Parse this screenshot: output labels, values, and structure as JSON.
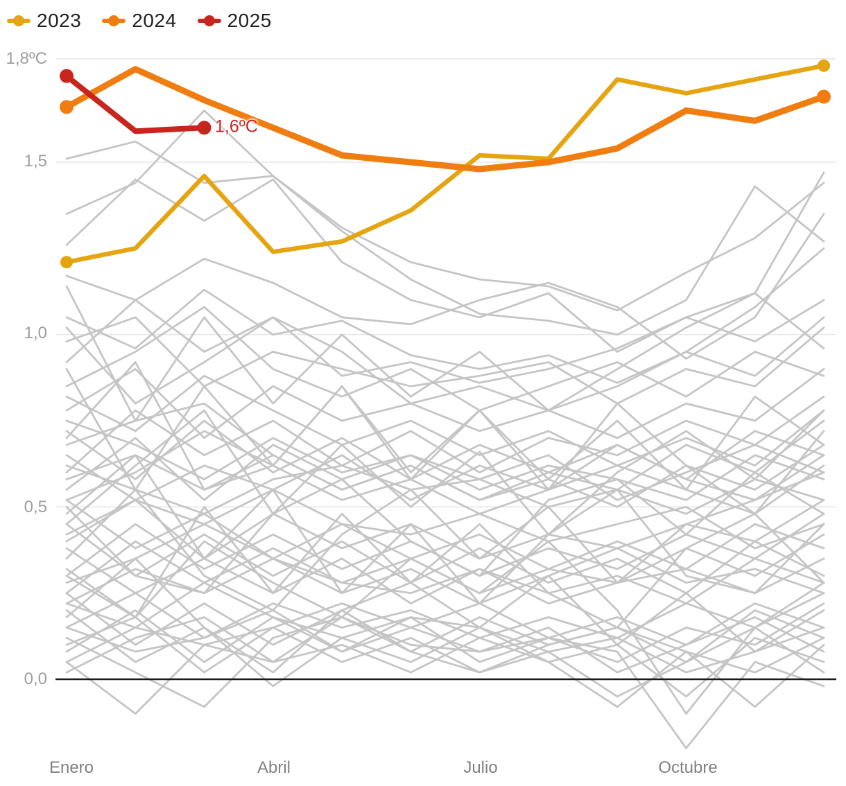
{
  "legend": {
    "items": [
      {
        "label": "2023",
        "color": "#E5A512"
      },
      {
        "label": "2024",
        "color": "#EF7D10"
      },
      {
        "label": "2025",
        "color": "#C8251E"
      }
    ]
  },
  "colors": {
    "grid": "#E7E7E7",
    "zero_line": "#1A1A1A",
    "background_lines": "#C5C5C5",
    "y_axis_text": "#9E9E9E",
    "x_axis_text": "#818181",
    "legend_text": "#212121"
  },
  "chart_data": {
    "type": "line",
    "unit": "°C",
    "n_months": 12,
    "ylim": [
      -0.3,
      1.85
    ],
    "grid": true,
    "legend_position": "top-left",
    "yticks": [
      {
        "value": 1.8,
        "label": "1,8ºC"
      },
      {
        "value": 1.5,
        "label": "1,5"
      },
      {
        "value": 1.0,
        "label": "1,0"
      },
      {
        "value": 0.5,
        "label": "0,5"
      },
      {
        "value": 0.0,
        "label": "0,0"
      }
    ],
    "x_ticks": [
      {
        "month_index": 0,
        "label": "Enero"
      },
      {
        "month_index": 3,
        "label": "Abril"
      },
      {
        "month_index": 6,
        "label": "Julio"
      },
      {
        "month_index": 9,
        "label": "Octubre"
      }
    ],
    "series": [
      {
        "name": "2023",
        "color": "#E5A512",
        "width": 6.5,
        "dot_radius": 9,
        "values": [
          1.21,
          1.25,
          1.46,
          1.24,
          1.27,
          1.36,
          1.52,
          1.51,
          1.74,
          1.7,
          1.74,
          1.78
        ]
      },
      {
        "name": "2024",
        "color": "#EF7D10",
        "width": 9,
        "dot_radius": 10,
        "values": [
          1.66,
          1.77,
          1.68,
          1.6,
          1.52,
          1.5,
          1.48,
          1.5,
          1.54,
          1.65,
          1.62,
          1.69
        ]
      },
      {
        "name": "2025",
        "color": "#C8251E",
        "width": 8,
        "dot_radius": 10,
        "values": [
          1.75,
          1.59,
          1.6
        ]
      }
    ],
    "annotation": {
      "text": "1,6ºC",
      "series": "2025",
      "month_index": 2,
      "value": 1.6,
      "color": "#C8251E"
    },
    "background_series": [
      [
        1.51,
        1.56,
        1.44,
        1.46,
        1.31,
        1.21,
        1.16,
        1.14,
        1.07,
        1.18,
        1.28,
        1.44
      ],
      [
        1.35,
        1.44,
        1.65,
        1.46,
        1.3,
        1.16,
        1.06,
        1.04,
        1.0,
        1.1,
        1.43,
        1.27
      ],
      [
        1.26,
        1.45,
        1.33,
        1.45,
        1.21,
        1.1,
        1.05,
        1.12,
        0.95,
        1.05,
        1.12,
        1.47
      ],
      [
        1.17,
        1.1,
        1.22,
        1.15,
        1.05,
        1.03,
        1.1,
        1.15,
        1.08,
        0.93,
        1.05,
        1.35
      ],
      [
        1.05,
        0.96,
        1.13,
        1.0,
        1.04,
        0.94,
        0.9,
        0.94,
        0.86,
        0.95,
        1.08,
        1.25
      ],
      [
        0.92,
        1.1,
        0.95,
        1.05,
        0.88,
        0.92,
        0.86,
        0.9,
        0.96,
        1.05,
        0.98,
        1.1
      ],
      [
        1.14,
        0.75,
        1.05,
        0.8,
        1.0,
        0.82,
        0.95,
        0.78,
        0.9,
        1.02,
        1.12,
        0.96
      ],
      [
        0.98,
        1.05,
        0.85,
        0.95,
        0.9,
        0.85,
        0.88,
        0.92,
        0.8,
        0.9,
        0.85,
        1.02
      ],
      [
        0.85,
        0.95,
        1.08,
        0.9,
        0.82,
        0.9,
        0.78,
        0.85,
        0.92,
        0.82,
        0.95,
        0.88
      ],
      [
        1.02,
        0.8,
        0.92,
        1.05,
        0.95,
        0.8,
        0.85,
        0.78,
        0.85,
        0.95,
        0.88,
        1.05
      ],
      [
        0.78,
        0.9,
        0.7,
        0.85,
        0.75,
        0.8,
        0.72,
        0.78,
        0.7,
        0.8,
        0.75,
        0.9
      ],
      [
        0.9,
        0.55,
        0.85,
        0.62,
        0.85,
        0.6,
        0.78,
        0.58,
        0.75,
        0.55,
        0.82,
        0.68
      ],
      [
        0.6,
        0.78,
        0.65,
        0.75,
        0.62,
        0.72,
        0.6,
        0.7,
        0.65,
        0.75,
        0.68,
        0.82
      ],
      [
        0.72,
        0.58,
        0.75,
        0.6,
        0.7,
        0.58,
        0.68,
        0.6,
        0.55,
        0.68,
        0.6,
        0.75
      ],
      [
        0.55,
        0.7,
        0.52,
        0.68,
        0.58,
        0.65,
        0.55,
        0.62,
        0.58,
        0.52,
        0.65,
        0.58
      ],
      [
        0.65,
        0.52,
        0.62,
        0.55,
        0.65,
        0.52,
        0.62,
        0.55,
        0.68,
        0.58,
        0.72,
        0.65
      ],
      [
        0.82,
        0.72,
        0.88,
        0.78,
        0.68,
        0.75,
        0.65,
        0.72,
        0.62,
        0.7,
        0.62,
        0.78
      ],
      [
        0.58,
        0.65,
        0.55,
        0.65,
        0.55,
        0.62,
        0.52,
        0.58,
        0.5,
        0.62,
        0.55,
        0.68
      ],
      [
        0.7,
        0.92,
        0.55,
        0.62,
        0.85,
        0.58,
        0.78,
        0.55,
        0.8,
        0.62,
        0.48,
        0.72
      ],
      [
        0.52,
        0.6,
        0.72,
        0.62,
        0.52,
        0.58,
        0.48,
        0.55,
        0.62,
        0.55,
        0.48,
        0.62
      ],
      [
        0.62,
        0.55,
        0.48,
        0.58,
        0.62,
        0.55,
        0.58,
        0.5,
        0.55,
        0.48,
        0.58,
        0.52
      ],
      [
        0.75,
        0.68,
        0.58,
        0.7,
        0.6,
        0.65,
        0.58,
        0.65,
        0.52,
        0.6,
        0.68,
        0.6
      ],
      [
        0.45,
        0.62,
        0.78,
        0.48,
        0.68,
        0.5,
        0.66,
        0.42,
        0.6,
        0.72,
        0.58,
        0.78
      ],
      [
        0.68,
        0.75,
        0.8,
        0.65,
        0.55,
        0.62,
        0.52,
        0.6,
        0.68,
        0.58,
        0.52,
        0.65
      ],
      [
        0.4,
        0.52,
        0.35,
        0.48,
        0.38,
        0.45,
        0.35,
        0.42,
        0.38,
        0.45,
        0.4,
        0.52
      ],
      [
        0.52,
        0.38,
        0.48,
        0.35,
        0.45,
        0.35,
        0.42,
        0.32,
        0.4,
        0.32,
        0.45,
        0.38
      ],
      [
        0.3,
        0.45,
        0.32,
        0.42,
        0.32,
        0.4,
        0.3,
        0.38,
        0.32,
        0.42,
        0.35,
        0.48
      ],
      [
        0.45,
        0.3,
        0.42,
        0.3,
        0.4,
        0.28,
        0.38,
        0.28,
        0.35,
        0.25,
        0.4,
        0.3
      ],
      [
        0.25,
        0.4,
        0.28,
        0.38,
        0.28,
        0.35,
        0.25,
        0.32,
        0.28,
        0.38,
        0.3,
        0.42
      ],
      [
        0.38,
        0.25,
        0.35,
        0.25,
        0.35,
        0.22,
        0.32,
        0.25,
        0.3,
        0.22,
        0.35,
        0.28
      ],
      [
        0.48,
        0.65,
        0.35,
        0.55,
        0.25,
        0.45,
        0.22,
        0.42,
        0.55,
        0.3,
        0.25,
        0.45
      ],
      [
        0.32,
        0.18,
        0.5,
        0.25,
        0.48,
        0.28,
        0.45,
        0.25,
        0.15,
        0.38,
        0.48,
        0.28
      ],
      [
        0.42,
        0.52,
        0.45,
        0.55,
        0.45,
        0.42,
        0.48,
        0.4,
        0.45,
        0.5,
        0.38,
        0.45
      ],
      [
        0.28,
        0.35,
        0.45,
        0.35,
        0.25,
        0.32,
        0.22,
        0.3,
        0.38,
        0.28,
        0.32,
        0.25
      ],
      [
        0.35,
        0.55,
        0.3,
        0.2,
        0.42,
        0.55,
        0.35,
        0.5,
        0.28,
        0.45,
        0.52,
        0.6
      ],
      [
        0.22,
        0.32,
        0.25,
        0.35,
        0.28,
        0.25,
        0.32,
        0.22,
        0.28,
        0.32,
        0.25,
        0.35
      ],
      [
        0.5,
        0.3,
        0.25,
        0.48,
        0.58,
        0.4,
        0.3,
        0.52,
        0.58,
        0.42,
        0.6,
        0.48
      ],
      [
        0.3,
        0.18,
        0.4,
        0.28,
        0.18,
        0.35,
        0.25,
        0.4,
        0.2,
        -0.1,
        0.15,
        0.25
      ],
      [
        0.15,
        0.25,
        0.12,
        0.22,
        0.15,
        0.2,
        0.12,
        0.18,
        0.12,
        0.22,
        0.15,
        0.28
      ],
      [
        0.25,
        0.1,
        0.22,
        0.1,
        0.2,
        0.08,
        0.18,
        0.1,
        0.15,
        0.05,
        0.2,
        0.12
      ],
      [
        0.08,
        0.2,
        0.05,
        0.18,
        0.08,
        0.15,
        0.08,
        0.12,
        0.05,
        0.15,
        0.1,
        0.22
      ],
      [
        0.2,
        0.05,
        0.15,
        -0.02,
        0.12,
        0.05,
        0.15,
        0.05,
        0.1,
        -0.05,
        0.12,
        0.05
      ],
      [
        0.05,
        0.15,
        0.1,
        0.15,
        0.05,
        0.12,
        0.02,
        0.08,
        0.12,
        0.02,
        0.08,
        0.15
      ],
      [
        0.12,
        0.02,
        -0.08,
        0.12,
        0.18,
        0.1,
        0.08,
        0.15,
        0.02,
        0.1,
        0.18,
        0.08
      ],
      [
        0.18,
        0.35,
        0.15,
        0.02,
        0.2,
        0.28,
        0.15,
        0.3,
        0.1,
        0.25,
        0.08,
        0.2
      ],
      [
        0.02,
        0.12,
        0.18,
        0.05,
        0.1,
        0.02,
        0.12,
        0.05,
        -0.08,
        0.08,
        0.02,
        0.12
      ],
      [
        0.1,
        0.18,
        0.02,
        0.15,
        0.22,
        0.15,
        0.22,
        0.12,
        0.08,
        -0.2,
        0.05,
        -0.02
      ],
      [
        0.22,
        0.15,
        0.28,
        0.18,
        0.12,
        0.18,
        0.05,
        0.12,
        0.18,
        0.1,
        0.22,
        0.15
      ],
      [
        0.15,
        0.08,
        0.12,
        0.2,
        0.08,
        0.18,
        0.15,
        0.08,
        -0.05,
        0.05,
        0.15,
        0.02
      ],
      [
        0.05,
        -0.1,
        0.1,
        0.05,
        0.18,
        0.08,
        0.02,
        0.1,
        0.15,
        0.08,
        -0.08,
        0.1
      ]
    ]
  }
}
